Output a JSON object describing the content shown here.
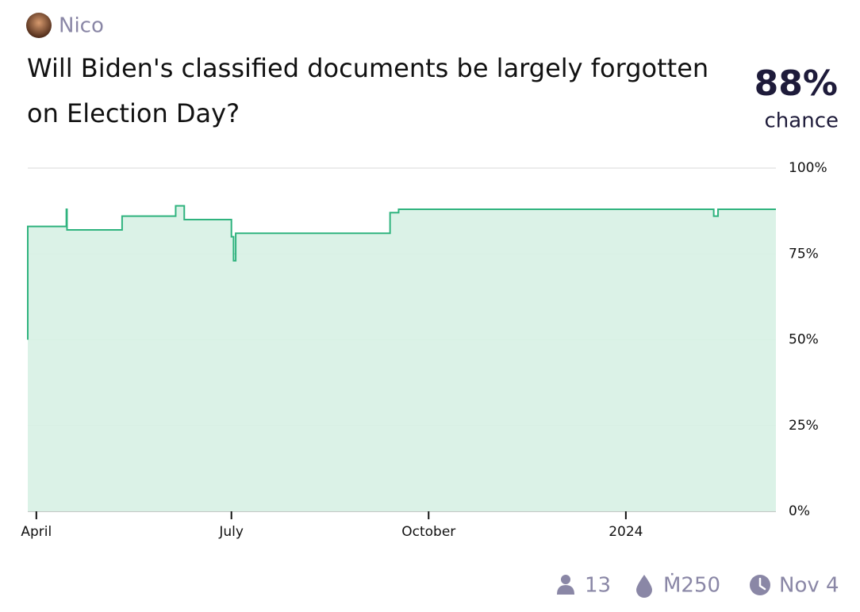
{
  "header": {
    "author": "Nico",
    "title_lines": [
      "Will Biden's classified documents be largely forgotten",
      "on Election Day?"
    ],
    "probability": "88%",
    "probability_caption": "chance"
  },
  "chart_data": {
    "type": "line",
    "step": true,
    "x": [
      -4,
      -4,
      14,
      14,
      14.3,
      14.3,
      40,
      40,
      65,
      65,
      69,
      69,
      91,
      91,
      92,
      92,
      93,
      93,
      165,
      165,
      169,
      169,
      316,
      316,
      318,
      318,
      345
    ],
    "values": [
      50,
      83,
      83,
      88,
      88,
      82,
      82,
      86,
      86,
      89,
      89,
      85,
      85,
      80,
      80,
      73,
      73,
      81,
      81,
      87,
      87,
      88,
      88,
      86,
      86,
      88,
      88
    ],
    "color": "#2fb37e",
    "fill_color": "#d9f1e6",
    "xlim": [
      -4,
      345
    ],
    "ylim": [
      0,
      100
    ],
    "xticks": [
      {
        "value": 0,
        "label": "April"
      },
      {
        "value": 91,
        "label": "July"
      },
      {
        "value": 183,
        "label": "October"
      },
      {
        "value": 275,
        "label": "2024"
      }
    ],
    "yticks": [
      {
        "value": 0,
        "label": "0%"
      },
      {
        "value": 25,
        "label": "25%"
      },
      {
        "value": 50,
        "label": "50%"
      },
      {
        "value": 75,
        "label": "75%"
      },
      {
        "value": 100,
        "label": "100%"
      }
    ],
    "grid": true
  },
  "footer": {
    "traders": "13",
    "volume": "Ṁ250",
    "close_date": "Nov 4"
  }
}
